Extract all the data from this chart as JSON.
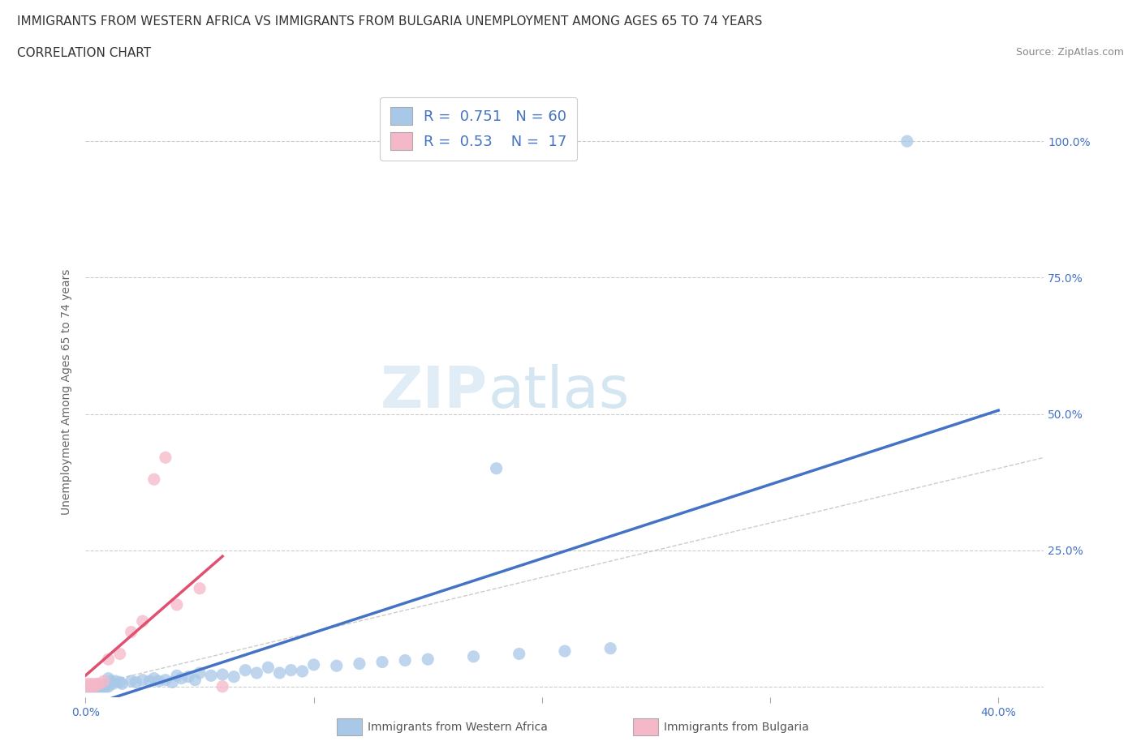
{
  "title_line1": "IMMIGRANTS FROM WESTERN AFRICA VS IMMIGRANTS FROM BULGARIA UNEMPLOYMENT AMONG AGES 65 TO 74 YEARS",
  "title_line2": "CORRELATION CHART",
  "source": "Source: ZipAtlas.com",
  "ylabel": "Unemployment Among Ages 65 to 74 years",
  "xlim": [
    0.0,
    0.42
  ],
  "ylim": [
    -0.02,
    1.1
  ],
  "R_western": 0.751,
  "N_western": 60,
  "R_bulgaria": 0.53,
  "N_bulgaria": 17,
  "color_western": "#a8c8e8",
  "color_bulgaria": "#f5b8c8",
  "trendline_western_color": "#4472c4",
  "trendline_bulgaria_color": "#e05070",
  "diagonal_color": "#cccccc",
  "watermark_zip": "ZIP",
  "watermark_atlas": "atlas",
  "title_fontsize": 11,
  "subtitle_fontsize": 11,
  "axis_label_fontsize": 10,
  "tick_fontsize": 10,
  "legend_fontsize": 13,
  "source_fontsize": 9,
  "western_x": [
    0.0,
    0.0,
    0.001,
    0.001,
    0.002,
    0.002,
    0.003,
    0.003,
    0.004,
    0.004,
    0.005,
    0.005,
    0.006,
    0.006,
    0.007,
    0.007,
    0.008,
    0.008,
    0.009,
    0.01,
    0.01,
    0.011,
    0.012,
    0.013,
    0.015,
    0.016,
    0.02,
    0.022,
    0.025,
    0.028,
    0.03,
    0.032,
    0.035,
    0.038,
    0.04,
    0.042,
    0.045,
    0.048,
    0.05,
    0.055,
    0.06,
    0.065,
    0.07,
    0.075,
    0.08,
    0.085,
    0.09,
    0.095,
    0.1,
    0.11,
    0.12,
    0.13,
    0.14,
    0.15,
    0.17,
    0.19,
    0.21,
    0.23,
    0.18,
    0.36
  ],
  "western_y": [
    0.0,
    0.002,
    0.0,
    0.001,
    0.0,
    0.002,
    0.0,
    0.001,
    0.0,
    0.001,
    0.0,
    0.001,
    0.0,
    0.001,
    0.0,
    0.001,
    0.0,
    0.001,
    0.0,
    0.0,
    0.015,
    0.01,
    0.005,
    0.01,
    0.008,
    0.005,
    0.01,
    0.008,
    0.012,
    0.01,
    0.015,
    0.01,
    0.012,
    0.008,
    0.02,
    0.015,
    0.018,
    0.012,
    0.025,
    0.02,
    0.022,
    0.018,
    0.03,
    0.025,
    0.035,
    0.025,
    0.03,
    0.028,
    0.04,
    0.038,
    0.042,
    0.045,
    0.048,
    0.05,
    0.055,
    0.06,
    0.065,
    0.07,
    0.4,
    1.0
  ],
  "bulgaria_x": [
    0.0,
    0.001,
    0.002,
    0.003,
    0.004,
    0.005,
    0.006,
    0.008,
    0.01,
    0.015,
    0.02,
    0.025,
    0.03,
    0.035,
    0.04,
    0.05,
    0.06
  ],
  "bulgaria_y": [
    0.0,
    0.005,
    0.0,
    0.005,
    0.0,
    0.005,
    0.005,
    0.01,
    0.05,
    0.06,
    0.1,
    0.12,
    0.38,
    0.42,
    0.15,
    0.18,
    0.0
  ]
}
